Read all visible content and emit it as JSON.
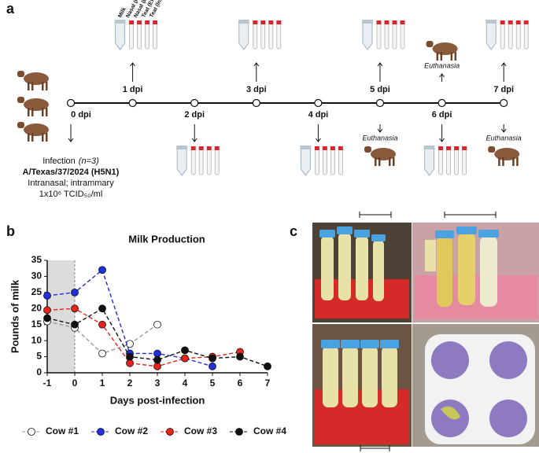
{
  "panel_labels": [
    "a",
    "b",
    "c"
  ],
  "timeline": {
    "days": [
      "0 dpi",
      "1 dpi",
      "2 dpi",
      "3 dpi",
      "4 dpi",
      "5 dpi",
      "6 dpi",
      "7 dpi"
    ],
    "sample_labels": [
      "Milk",
      "Nasal (R)",
      "Nasal (L)",
      "Teat (Ext)",
      "Teat (Int)"
    ],
    "euthanasia": "Euthanasia",
    "infection": {
      "label": "Infection",
      "n": "(n=3)",
      "strain": "A/Texas/37/2024 (H5N1)",
      "route": "Intranasal; intrammary",
      "dose": "1x10⁶ TCID₅₀/ml"
    }
  },
  "chart_data": {
    "type": "line",
    "title": "Milk Production",
    "x_label": "Days post-infection",
    "y_label": "Pounds of milk",
    "x": [
      -1,
      0,
      1,
      2,
      3,
      4,
      5,
      6,
      7
    ],
    "xlim": [
      -1,
      7
    ],
    "xticks": [
      -1,
      0,
      1,
      2,
      3,
      4,
      5,
      6,
      7
    ],
    "ylim": [
      0,
      35
    ],
    "yticks": [
      0,
      5,
      10,
      15,
      20,
      25,
      30,
      35
    ],
    "shade": [
      -1,
      0
    ],
    "grid": false,
    "legend": "bottom",
    "series": [
      {
        "name": "Cow #1",
        "color": "#9a9a9a",
        "marker_fill": "#ffffff",
        "values": [
          16,
          14,
          6,
          9,
          15,
          null,
          null,
          null,
          null
        ]
      },
      {
        "name": "Cow #2",
        "color": "#1f2fe0",
        "marker_fill": "#1f2fe0",
        "values": [
          24,
          25,
          32,
          6,
          6,
          4.5,
          2,
          null,
          null
        ]
      },
      {
        "name": "Cow #3",
        "color": "#e8231c",
        "marker_fill": "#e8231c",
        "values": [
          19.5,
          20,
          15,
          3,
          2,
          4.5,
          5,
          6.5,
          null
        ]
      },
      {
        "name": "Cow #4",
        "color": "#111111",
        "marker_fill": "#111111",
        "values": [
          17,
          15,
          20,
          5,
          4,
          7,
          4.5,
          5,
          2
        ]
      }
    ]
  }
}
